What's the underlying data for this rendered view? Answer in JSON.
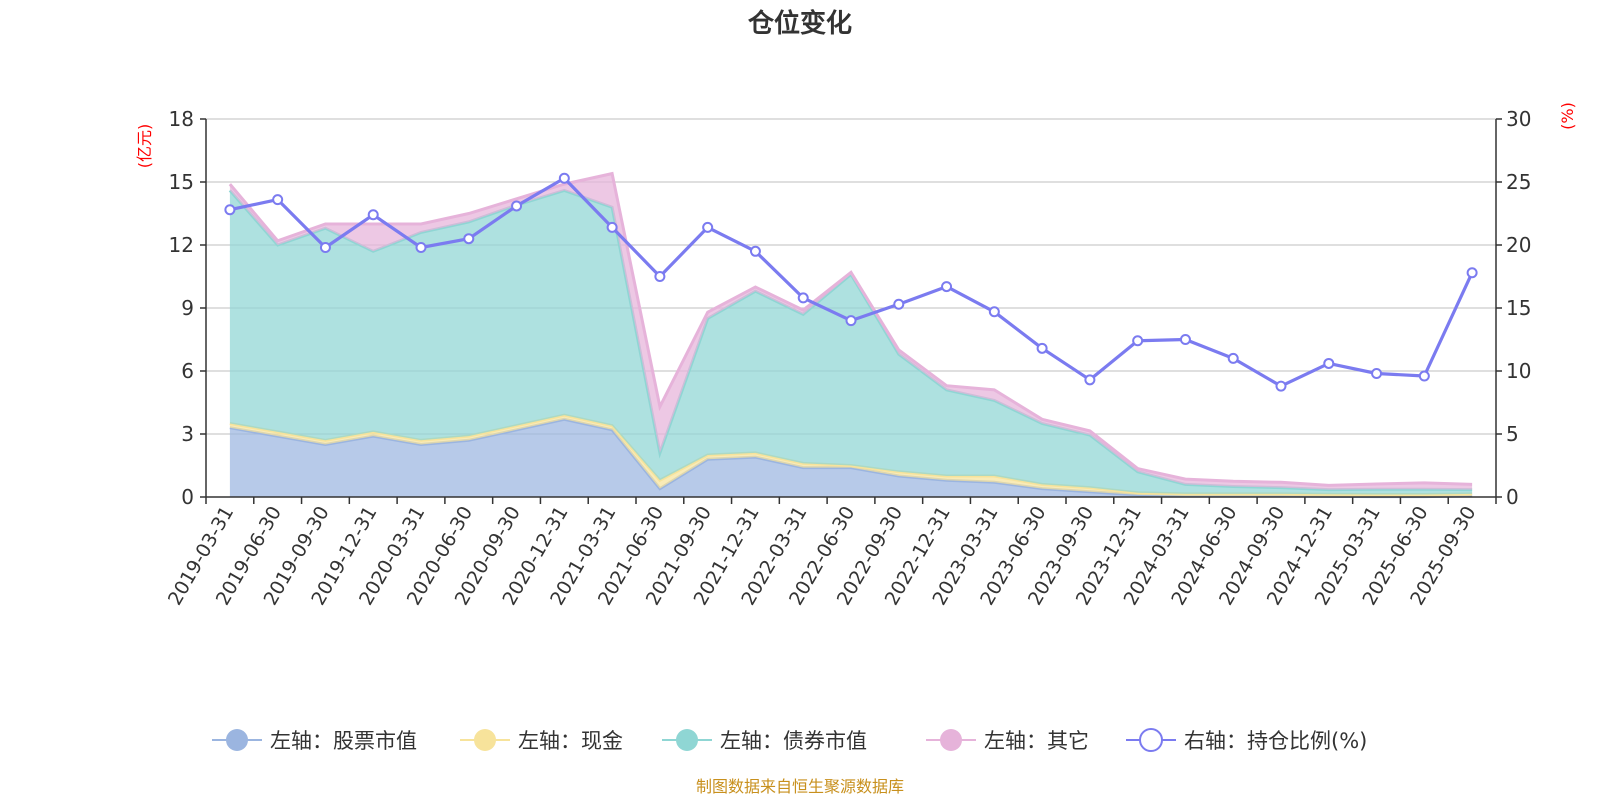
{
  "chart_data": {
    "type": "area",
    "title": "仓位变化",
    "left_unit": "(亿元)",
    "right_unit": "(%)",
    "left_ylim": [
      0,
      18
    ],
    "left_ticks": [
      "0",
      "3",
      "6",
      "9",
      "12",
      "15",
      "18"
    ],
    "right_ylim": [
      0,
      30
    ],
    "right_ticks": [
      "0",
      "5",
      "10",
      "15",
      "20",
      "25",
      "30"
    ],
    "categories": [
      "2019-03-31",
      "2019-06-30",
      "2019-09-30",
      "2019-12-31",
      "2020-03-31",
      "2020-06-30",
      "2020-09-30",
      "2020-12-31",
      "2021-03-31",
      "2021-06-30",
      "2021-09-30",
      "2021-12-31",
      "2022-03-31",
      "2022-06-30",
      "2022-09-30",
      "2022-12-31",
      "2023-03-31",
      "2023-06-30",
      "2023-09-30",
      "2023-12-31",
      "2024-03-31",
      "2024-06-30",
      "2024-09-30",
      "2024-12-31",
      "2025-03-31",
      "2025-06-30",
      "2025-09-30"
    ],
    "series": [
      {
        "name": "左轴：股票市值",
        "axis": "left",
        "kind": "stack",
        "color": "#9bb5e0",
        "values": [
          3.3,
          2.9,
          2.5,
          2.9,
          2.5,
          2.7,
          3.2,
          3.7,
          3.2,
          0.4,
          1.8,
          1.9,
          1.4,
          1.4,
          1.0,
          0.8,
          0.7,
          0.4,
          0.25,
          0.1,
          0.05,
          0.05,
          0.05,
          0.03,
          0.02,
          0.02,
          0.05
        ]
      },
      {
        "name": "左轴：现金",
        "axis": "left",
        "kind": "stack",
        "color": "#f7e39b",
        "values": [
          0.2,
          0.2,
          0.2,
          0.2,
          0.2,
          0.2,
          0.2,
          0.2,
          0.2,
          0.4,
          0.2,
          0.2,
          0.2,
          0.1,
          0.2,
          0.2,
          0.3,
          0.2,
          0.2,
          0.1,
          0.1,
          0.1,
          0.1,
          0.1,
          0.1,
          0.1,
          0.1
        ]
      },
      {
        "name": "左轴：债券市值",
        "axis": "left",
        "kind": "stack",
        "color": "#8fd6d4",
        "values": [
          11.1,
          8.9,
          10.1,
          8.6,
          9.9,
          10.2,
          10.5,
          10.7,
          10.4,
          1.3,
          6.5,
          7.7,
          7.1,
          9.1,
          5.6,
          4.1,
          3.6,
          2.9,
          2.5,
          1.0,
          0.45,
          0.35,
          0.3,
          0.22,
          0.25,
          0.25,
          0.2
        ]
      },
      {
        "name": "左轴：其它",
        "axis": "left",
        "kind": "stack",
        "color": "#e6b3da",
        "values": [
          0.3,
          0.2,
          0.2,
          1.3,
          0.4,
          0.4,
          0.3,
          0.3,
          1.6,
          2.2,
          0.3,
          0.2,
          0.2,
          0.1,
          0.2,
          0.2,
          0.5,
          0.2,
          0.2,
          0.15,
          0.25,
          0.25,
          0.25,
          0.2,
          0.25,
          0.3,
          0.25
        ]
      },
      {
        "name": "右轴：持仓比例(%)",
        "axis": "right",
        "kind": "line",
        "color": "#7b7bf0",
        "values": [
          22.8,
          23.6,
          19.8,
          22.4,
          19.8,
          20.5,
          23.1,
          25.3,
          21.4,
          17.5,
          21.4,
          19.5,
          15.8,
          14.0,
          15.3,
          16.7,
          14.7,
          11.8,
          9.3,
          12.4,
          12.5,
          11.0,
          8.8,
          10.6,
          9.8,
          9.6,
          17.8
        ]
      }
    ],
    "source": "制图数据来自恒生聚源数据库"
  }
}
